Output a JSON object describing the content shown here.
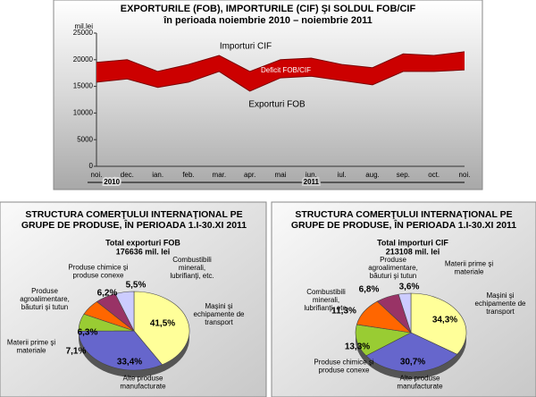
{
  "chart_data": [
    {
      "type": "area_band",
      "title": [
        "EXPORTURILE (FOB), IMPORTURILE (CIF) ŞI SOLDUL FOB/CIF",
        "în perioada noiembrie 2010 – noiembrie 2011"
      ],
      "y_label": "mil.lei",
      "categories": [
        "noi.",
        "dec.",
        "ian.",
        "feb.",
        "mar.",
        "apr.",
        "mai",
        "iun.",
        "iul.",
        "aug.",
        "sep.",
        "oct.",
        "noi."
      ],
      "year_labels": [
        "2010",
        "2011"
      ],
      "series": [
        {
          "name": "Importuri CIF",
          "color": "#7a0000",
          "values": [
            19500,
            20000,
            17800,
            19100,
            20800,
            17800,
            20000,
            20300,
            19100,
            18500,
            21100,
            20800,
            21500
          ]
        },
        {
          "name": "Exporturi FOB",
          "color": "#7a0000",
          "values": [
            15800,
            16400,
            14800,
            15800,
            17800,
            14100,
            16600,
            16900,
            16100,
            15300,
            17800,
            17800,
            18100
          ]
        }
      ],
      "band_label": "Deficit FOB/CIF",
      "band_color": "#cc0000",
      "ylim": [
        0,
        25000
      ],
      "yticks": [
        0,
        5000,
        10000,
        15000,
        20000,
        25000
      ]
    },
    {
      "type": "pie",
      "title": [
        "STRUCTURA COMERŢULUI INTERNAŢIONAL PE",
        "GRUPE DE PRODUSE, ÎN PERIOADA 1.I-30.XI 2011"
      ],
      "subtitle": [
        "Total exporturi FOB",
        "176636 mil. lei"
      ],
      "categories": [
        "Maşini şi echipamente de transport",
        "Alte produse manufacturate",
        "Materii prime şi materiale",
        "Produse agroalimentare, băuturi şi tutun",
        "Produse chimice şi produse conexe",
        "Combustibili minerali, lubrifianţi, etc."
      ],
      "values": [
        41.5,
        33.4,
        7.1,
        6.3,
        6.2,
        5.5
      ],
      "value_labels": [
        "41,5%",
        "33,4%",
        "7,1%",
        "6,3%",
        "6,2%",
        "5,5%"
      ],
      "colors": [
        "#ffff99",
        "#6666cc",
        "#99cc33",
        "#ff6600",
        "#993366",
        "#ccccff"
      ]
    },
    {
      "type": "pie",
      "title": [
        "STRUCTURA COMERŢULUI INTERNAŢIONAL PE",
        "GRUPE DE PRODUSE, ÎN PERIOADA 1.I-30.XI 2011"
      ],
      "subtitle": [
        "Total importuri  CIF",
        "213108 mil. lei"
      ],
      "categories": [
        "Maşini şi echipamente de transport",
        "Alte produse manufacturate",
        "Produse chimice şi produse conexe",
        "Combustibili minerali, lubrifianţi, etc.",
        "Produse agroalimentare, băuturi şi tutun",
        "Materii prime şi materiale"
      ],
      "values": [
        34.3,
        30.7,
        13.3,
        11.3,
        6.8,
        3.6
      ],
      "value_labels": [
        "34,3%",
        "30,7%",
        "13,3%",
        "11,3%",
        "6,8%",
        "3,6%"
      ],
      "colors": [
        "#ffff99",
        "#6666cc",
        "#99cc33",
        "#ff6600",
        "#993366",
        "#ccccff"
      ]
    }
  ]
}
